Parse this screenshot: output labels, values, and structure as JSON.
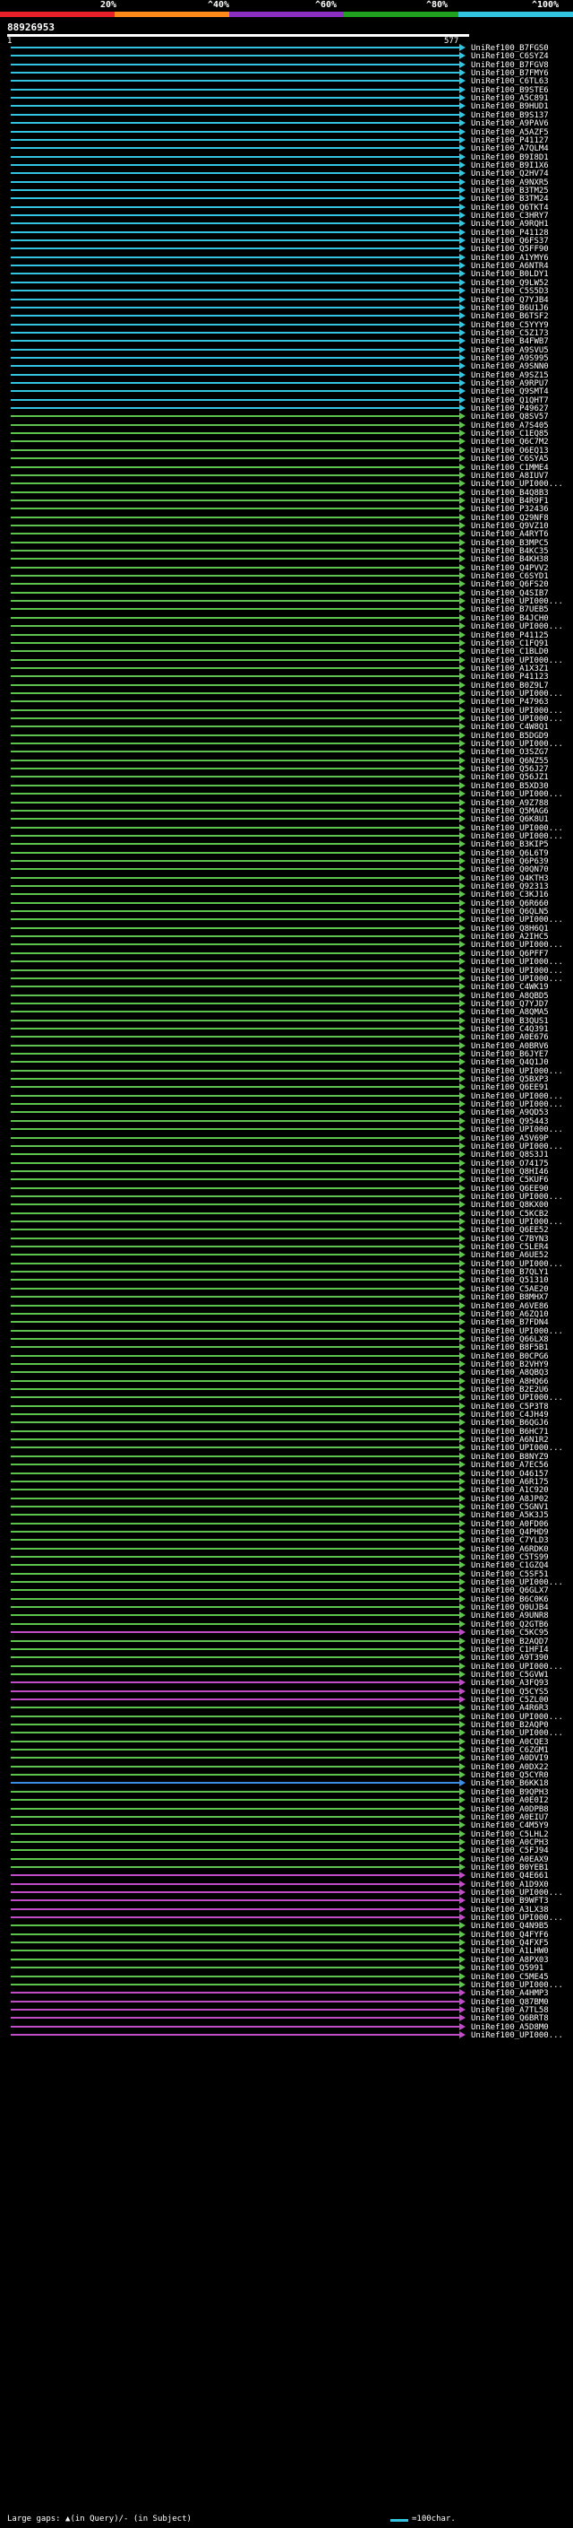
{
  "legend": {
    "stops": [
      "20%",
      "^40%",
      "^60%",
      "^80%",
      "^100%"
    ],
    "colors": [
      "#e8202a",
      "#ff8a1a",
      "#8a2fbf",
      "#1fa01f",
      "#33c4e0"
    ]
  },
  "query": {
    "id": "88926953",
    "start": "1",
    "end": "577"
  },
  "colors": {
    "cyan": "#33c4e0",
    "green": "#5cc44a",
    "magenta": "#c04cc8",
    "blue": "#3b8ee6"
  },
  "hits": [
    {
      "label": "UniRef100_B7FGS0",
      "c": "cyan"
    },
    {
      "label": "UniRef100_C6SYZ4",
      "c": "cyan"
    },
    {
      "label": "UniRef100_B7FGV8",
      "c": "cyan"
    },
    {
      "label": "UniRef100_B7FMY6",
      "c": "cyan"
    },
    {
      "label": "UniRef100_C6TL63",
      "c": "cyan"
    },
    {
      "label": "UniRef100_B9STE6",
      "c": "cyan"
    },
    {
      "label": "UniRef100_A5C891",
      "c": "cyan"
    },
    {
      "label": "UniRef100_B9HUD1",
      "c": "cyan"
    },
    {
      "label": "UniRef100_B9S137",
      "c": "cyan"
    },
    {
      "label": "UniRef100_A9PAV6",
      "c": "cyan"
    },
    {
      "label": "UniRef100_A5AZF5",
      "c": "cyan"
    },
    {
      "label": "UniRef100_P41127",
      "c": "cyan"
    },
    {
      "label": "UniRef100_A7QLM4",
      "c": "cyan"
    },
    {
      "label": "UniRef100_B9I8D1",
      "c": "cyan"
    },
    {
      "label": "UniRef100_B9I1X6",
      "c": "cyan"
    },
    {
      "label": "UniRef100_Q2HV74",
      "c": "cyan"
    },
    {
      "label": "UniRef100_A9NXR5",
      "c": "cyan"
    },
    {
      "label": "UniRef100_B3TM25",
      "c": "cyan"
    },
    {
      "label": "UniRef100_B3TM24",
      "c": "cyan"
    },
    {
      "label": "UniRef100_Q6TKT4",
      "c": "cyan"
    },
    {
      "label": "UniRef100_C3HRY7",
      "c": "cyan"
    },
    {
      "label": "UniRef100_A9RQH1",
      "c": "cyan"
    },
    {
      "label": "UniRef100_P41128",
      "c": "cyan"
    },
    {
      "label": "UniRef100_Q6FS37",
      "c": "cyan"
    },
    {
      "label": "UniRef100_Q5FF90",
      "c": "cyan"
    },
    {
      "label": "UniRef100_A1YMY6",
      "c": "cyan"
    },
    {
      "label": "UniRef100_A6NTR4",
      "c": "cyan"
    },
    {
      "label": "UniRef100_B0LDY1",
      "c": "cyan"
    },
    {
      "label": "UniRef100_Q9LW52",
      "c": "cyan"
    },
    {
      "label": "UniRef100_C5S5D3",
      "c": "cyan"
    },
    {
      "label": "UniRef100_Q7YJB4",
      "c": "cyan"
    },
    {
      "label": "UniRef100_B6U1J6",
      "c": "cyan"
    },
    {
      "label": "UniRef100_B6TSF2",
      "c": "cyan"
    },
    {
      "label": "UniRef100_C5YYY9",
      "c": "cyan"
    },
    {
      "label": "UniRef100_C5Z173",
      "c": "cyan"
    },
    {
      "label": "UniRef100_B4FWB7",
      "c": "cyan"
    },
    {
      "label": "UniRef100_A9SVU5",
      "c": "cyan"
    },
    {
      "label": "UniRef100_A9S995",
      "c": "cyan"
    },
    {
      "label": "UniRef100_A9SNN0",
      "c": "cyan"
    },
    {
      "label": "UniRef100_A9SZ15",
      "c": "cyan"
    },
    {
      "label": "UniRef100_A9RPU7",
      "c": "cyan"
    },
    {
      "label": "UniRef100_Q9SMT4",
      "c": "cyan"
    },
    {
      "label": "UniRef100_Q1QHT7",
      "c": "cyan"
    },
    {
      "label": "UniRef100_P49627",
      "c": "cyan"
    },
    {
      "label": "UniRef100_Q8SV57",
      "c": "green"
    },
    {
      "label": "UniRef100_A7S405",
      "c": "green"
    },
    {
      "label": "UniRef100_C1EQ85",
      "c": "green"
    },
    {
      "label": "UniRef100_Q6C7M2",
      "c": "green"
    },
    {
      "label": "UniRef100_O6EQ13",
      "c": "green"
    },
    {
      "label": "UniRef100_C6SYA5",
      "c": "green"
    },
    {
      "label": "UniRef100_C1MME4",
      "c": "green"
    },
    {
      "label": "UniRef100_A8IUV7",
      "c": "green"
    },
    {
      "label": "UniRef100_UPI000...",
      "c": "green"
    },
    {
      "label": "UniRef100_B4Q8B3",
      "c": "green"
    },
    {
      "label": "UniRef100_B4R9F1",
      "c": "green"
    },
    {
      "label": "UniRef100_P32436",
      "c": "green"
    },
    {
      "label": "UniRef100_Q29NF8",
      "c": "green"
    },
    {
      "label": "UniRef100_Q9VZ10",
      "c": "green"
    },
    {
      "label": "UniRef100_A4RYT6",
      "c": "green"
    },
    {
      "label": "UniRef100_B3MPC5",
      "c": "green"
    },
    {
      "label": "UniRef100_B4KC35",
      "c": "green"
    },
    {
      "label": "UniRef100_B4KH38",
      "c": "green"
    },
    {
      "label": "UniRef100_Q4PVV2",
      "c": "green"
    },
    {
      "label": "UniRef100_C6SYD1",
      "c": "green"
    },
    {
      "label": "UniRef100_Q6FS20",
      "c": "green"
    },
    {
      "label": "UniRef100_Q4SIB7",
      "c": "green"
    },
    {
      "label": "UniRef100_UPI000...",
      "c": "green"
    },
    {
      "label": "UniRef100_B7UEB5",
      "c": "green"
    },
    {
      "label": "UniRef100_B4JCH0",
      "c": "green"
    },
    {
      "label": "UniRef100_UPI000...",
      "c": "green"
    },
    {
      "label": "UniRef100_P41125",
      "c": "green"
    },
    {
      "label": "UniRef100_C1FQ91",
      "c": "green"
    },
    {
      "label": "UniRef100_C1BLD0",
      "c": "green"
    },
    {
      "label": "UniRef100_UPI000...",
      "c": "green"
    },
    {
      "label": "UniRef100_A1X3Z1",
      "c": "green"
    },
    {
      "label": "UniRef100_P41123",
      "c": "green"
    },
    {
      "label": "UniRef100_B0Z9L7",
      "c": "green"
    },
    {
      "label": "UniRef100_UPI000...",
      "c": "green"
    },
    {
      "label": "UniRef100_P47963",
      "c": "green"
    },
    {
      "label": "UniRef100_UPI000...",
      "c": "green"
    },
    {
      "label": "UniRef100_UPI000...",
      "c": "green"
    },
    {
      "label": "UniRef100_C4W8Q1",
      "c": "green"
    },
    {
      "label": "UniRef100_B5DGD9",
      "c": "green"
    },
    {
      "label": "UniRef100_UPI000...",
      "c": "green"
    },
    {
      "label": "UniRef100_O3SZG7",
      "c": "green"
    },
    {
      "label": "UniRef100_Q6NZ55",
      "c": "green"
    },
    {
      "label": "UniRef100_Q56J27",
      "c": "green"
    },
    {
      "label": "UniRef100_Q56JZ1",
      "c": "green"
    },
    {
      "label": "UniRef100_B5XD30",
      "c": "green"
    },
    {
      "label": "UniRef100_UPI000...",
      "c": "green"
    },
    {
      "label": "UniRef100_A9Z788",
      "c": "green"
    },
    {
      "label": "UniRef100_Q5MAG6",
      "c": "green"
    },
    {
      "label": "UniRef100_Q6K8U1",
      "c": "green"
    },
    {
      "label": "UniRef100_UPI000...",
      "c": "green"
    },
    {
      "label": "UniRef100_UPI000...",
      "c": "green"
    },
    {
      "label": "UniRef100_B3KIP5",
      "c": "green"
    },
    {
      "label": "UniRef100_Q6L6T9",
      "c": "green"
    },
    {
      "label": "UniRef100_Q6P639",
      "c": "green"
    },
    {
      "label": "UniRef100_Q0QN70",
      "c": "green"
    },
    {
      "label": "UniRef100_Q4KTH3",
      "c": "green"
    },
    {
      "label": "UniRef100_Q92313",
      "c": "green"
    },
    {
      "label": "UniRef100_C3KJ16",
      "c": "green"
    },
    {
      "label": "UniRef100_Q6R660",
      "c": "green"
    },
    {
      "label": "UniRef100_Q6QLN5",
      "c": "green"
    },
    {
      "label": "UniRef100_UPI000...",
      "c": "green"
    },
    {
      "label": "UniRef100_Q8H6Q1",
      "c": "green"
    },
    {
      "label": "UniRef100_A2IHC5",
      "c": "green"
    },
    {
      "label": "UniRef100_UPI000...",
      "c": "green"
    },
    {
      "label": "UniRef100_Q6PFF7",
      "c": "green"
    },
    {
      "label": "UniRef100_UPI000...",
      "c": "green"
    },
    {
      "label": "UniRef100_UPI000...",
      "c": "green"
    },
    {
      "label": "UniRef100_UPI000...",
      "c": "green"
    },
    {
      "label": "UniRef100_C4WK19",
      "c": "green"
    },
    {
      "label": "UniRef100_A8QBD5",
      "c": "green"
    },
    {
      "label": "UniRef100_Q7YJD7",
      "c": "green"
    },
    {
      "label": "UniRef100_A8QMA5",
      "c": "green"
    },
    {
      "label": "UniRef100_B3QUS1",
      "c": "green"
    },
    {
      "label": "UniRef100_C4Q391",
      "c": "green"
    },
    {
      "label": "UniRef100_A0E676",
      "c": "green"
    },
    {
      "label": "UniRef100_A0BRV6",
      "c": "green"
    },
    {
      "label": "UniRef100_B6JYE7",
      "c": "green"
    },
    {
      "label": "UniRef100_Q4Q1J0",
      "c": "green"
    },
    {
      "label": "UniRef100_UPI000...",
      "c": "green"
    },
    {
      "label": "UniRef100_Q5BXP3",
      "c": "green"
    },
    {
      "label": "UniRef100_Q6EE91",
      "c": "green"
    },
    {
      "label": "UniRef100_UPI000...",
      "c": "green"
    },
    {
      "label": "UniRef100_UPI000...",
      "c": "green"
    },
    {
      "label": "UniRef100_A9QD53",
      "c": "green"
    },
    {
      "label": "UniRef100_Q95443",
      "c": "green"
    },
    {
      "label": "UniRef100_UPI000...",
      "c": "green"
    },
    {
      "label": "UniRef100_A5V69P",
      "c": "green"
    },
    {
      "label": "UniRef100_UPI000...",
      "c": "green"
    },
    {
      "label": "UniRef100_Q8S3J1",
      "c": "green"
    },
    {
      "label": "UniRef100_O74175",
      "c": "green"
    },
    {
      "label": "UniRef100_Q8HI46",
      "c": "green"
    },
    {
      "label": "UniRef100_C5KUF6",
      "c": "green"
    },
    {
      "label": "UniRef100_Q6EE90",
      "c": "green"
    },
    {
      "label": "UniRef100_UPI000...",
      "c": "green"
    },
    {
      "label": "UniRef100_Q8KX00",
      "c": "green"
    },
    {
      "label": "UniRef100_C5KCB2",
      "c": "green"
    },
    {
      "label": "UniRef100_UPI000...",
      "c": "green"
    },
    {
      "label": "UniRef100_Q6EE52",
      "c": "green"
    },
    {
      "label": "UniRef100_C7BYN3",
      "c": "green"
    },
    {
      "label": "UniRef100_C5LER4",
      "c": "green"
    },
    {
      "label": "UniRef100_A6UE52",
      "c": "green"
    },
    {
      "label": "UniRef100_UPI000...",
      "c": "green"
    },
    {
      "label": "UniRef100_B7QLY1",
      "c": "green"
    },
    {
      "label": "UniRef100_Q51310",
      "c": "green"
    },
    {
      "label": "UniRef100_C5AE20",
      "c": "green"
    },
    {
      "label": "UniRef100_B8MHX7",
      "c": "green"
    },
    {
      "label": "UniRef100_A6VE86",
      "c": "green"
    },
    {
      "label": "UniRef100_A6ZQ10",
      "c": "green"
    },
    {
      "label": "UniRef100_B7FDN4",
      "c": "green"
    },
    {
      "label": "UniRef100_UPI000...",
      "c": "green"
    },
    {
      "label": "UniRef100_Q66LX8",
      "c": "green"
    },
    {
      "label": "UniRef100_B8F5B1",
      "c": "green"
    },
    {
      "label": "UniRef100_B0CPG6",
      "c": "green"
    },
    {
      "label": "UniRef100_B2VHY9",
      "c": "green"
    },
    {
      "label": "UniRef100_A8QBQ3",
      "c": "green"
    },
    {
      "label": "UniRef100_A8HQ66",
      "c": "green"
    },
    {
      "label": "UniRef100_B2E2U6",
      "c": "green"
    },
    {
      "label": "UniRef100_UPI000...",
      "c": "green"
    },
    {
      "label": "UniRef100_C5P3T8",
      "c": "green"
    },
    {
      "label": "UniRef100_C4JH49",
      "c": "green"
    },
    {
      "label": "UniRef100_B6QGJ6",
      "c": "green"
    },
    {
      "label": "UniRef100_B6HC71",
      "c": "green"
    },
    {
      "label": "UniRef100_A6N1R2",
      "c": "green"
    },
    {
      "label": "UniRef100_UPI000...",
      "c": "green"
    },
    {
      "label": "UniRef100_B8NYZ9",
      "c": "green"
    },
    {
      "label": "UniRef100_A7EC56",
      "c": "green"
    },
    {
      "label": "UniRef100_O46157",
      "c": "green"
    },
    {
      "label": "UniRef100_A6R175",
      "c": "green"
    },
    {
      "label": "UniRef100_A1C920",
      "c": "green"
    },
    {
      "label": "UniRef100_A8JP02",
      "c": "green"
    },
    {
      "label": "UniRef100_C5GNV1",
      "c": "green"
    },
    {
      "label": "UniRef100_A5K3J5",
      "c": "green"
    },
    {
      "label": "UniRef100_A0FD06",
      "c": "green"
    },
    {
      "label": "UniRef100_Q4PHD9",
      "c": "green"
    },
    {
      "label": "UniRef100_C7YLD3",
      "c": "green"
    },
    {
      "label": "UniRef100_A6RDK0",
      "c": "green"
    },
    {
      "label": "UniRef100_C5TS99",
      "c": "green"
    },
    {
      "label": "UniRef100_C1GZQ4",
      "c": "green"
    },
    {
      "label": "UniRef100_C5SF51",
      "c": "green"
    },
    {
      "label": "UniRef100_UPI000...",
      "c": "green"
    },
    {
      "label": "UniRef100_Q6GLX7",
      "c": "green"
    },
    {
      "label": "UniRef100_B6C0K6",
      "c": "green"
    },
    {
      "label": "UniRef100_Q0UJB4",
      "c": "green"
    },
    {
      "label": "UniRef100_A9UNR8",
      "c": "green"
    },
    {
      "label": "UniRef100_Q2GTB6",
      "c": "green"
    },
    {
      "label": "UniRef100_C5KC95",
      "c": "magenta"
    },
    {
      "label": "UniRef100_B2AQD7",
      "c": "green"
    },
    {
      "label": "UniRef100_C1HFI4",
      "c": "green"
    },
    {
      "label": "UniRef100_A9T390",
      "c": "green"
    },
    {
      "label": "UniRef100_UPI000...",
      "c": "green"
    },
    {
      "label": "UniRef100_C5GVW1",
      "c": "green"
    },
    {
      "label": "UniRef100_A3FQ93",
      "c": "magenta"
    },
    {
      "label": "UniRef100_Q5CYS5",
      "c": "magenta"
    },
    {
      "label": "UniRef100_C5ZL00",
      "c": "magenta"
    },
    {
      "label": "UniRef100_A4R6R3",
      "c": "green"
    },
    {
      "label": "UniRef100_UPI000...",
      "c": "green"
    },
    {
      "label": "UniRef100_B2AQP0",
      "c": "green"
    },
    {
      "label": "UniRef100_UPI000...",
      "c": "green"
    },
    {
      "label": "UniRef100_A0CQE3",
      "c": "green"
    },
    {
      "label": "UniRef100_C6ZGM1",
      "c": "green"
    },
    {
      "label": "UniRef100_A0DVI9",
      "c": "green"
    },
    {
      "label": "UniRef100_A0DX22",
      "c": "green"
    },
    {
      "label": "UniRef100_Q5CYR0",
      "c": "green"
    },
    {
      "label": "UniRef100_B6KK18",
      "c": "blue"
    },
    {
      "label": "UniRef100_B9QPH3",
      "c": "green"
    },
    {
      "label": "UniRef100_A0E0I2",
      "c": "green"
    },
    {
      "label": "UniRef100_A0DPB8",
      "c": "green"
    },
    {
      "label": "UniRef100_A0EIU7",
      "c": "green"
    },
    {
      "label": "UniRef100_C4M5Y9",
      "c": "green"
    },
    {
      "label": "UniRef100_C5LHL2",
      "c": "green"
    },
    {
      "label": "UniRef100_A0CPH3",
      "c": "green"
    },
    {
      "label": "UniRef100_C5FJ94",
      "c": "green"
    },
    {
      "label": "UniRef100_A0EAX9",
      "c": "green"
    },
    {
      "label": "UniRef100_B0YEB1",
      "c": "green"
    },
    {
      "label": "UniRef100_Q4E661",
      "c": "magenta"
    },
    {
      "label": "UniRef100_A1D9X0",
      "c": "magenta"
    },
    {
      "label": "UniRef100_UPI000...",
      "c": "magenta"
    },
    {
      "label": "UniRef100_B9WFT3",
      "c": "magenta"
    },
    {
      "label": "UniRef100_A3LX38",
      "c": "magenta"
    },
    {
      "label": "UniRef100_UPI000...",
      "c": "magenta"
    },
    {
      "label": "UniRef100_Q4N9B5",
      "c": "green"
    },
    {
      "label": "UniRef100_Q4FYF6",
      "c": "green"
    },
    {
      "label": "UniRef100_Q4FXF5",
      "c": "green"
    },
    {
      "label": "UniRef100_A1LHW0",
      "c": "green"
    },
    {
      "label": "UniRef100_A8PX03",
      "c": "green"
    },
    {
      "label": "UniRef100_Q5991",
      "c": "green"
    },
    {
      "label": "UniRef100_C5ME45",
      "c": "green"
    },
    {
      "label": "UniRef100_UPI000...",
      "c": "green"
    },
    {
      "label": "UniRef100_A4HMP3",
      "c": "magenta"
    },
    {
      "label": "UniRef100_Q87BM0",
      "c": "magenta"
    },
    {
      "label": "UniRef100_A7TL58",
      "c": "magenta"
    },
    {
      "label": "UniRef100_Q6BRT8",
      "c": "magenta"
    },
    {
      "label": "UniRef100_A5D8M0",
      "c": "magenta"
    },
    {
      "label": "UniRef100_UPI000...",
      "c": "magenta"
    }
  ],
  "footer": {
    "left": "Large gaps: ▲(in Query)/- (in Subject)",
    "right": "=100char."
  }
}
